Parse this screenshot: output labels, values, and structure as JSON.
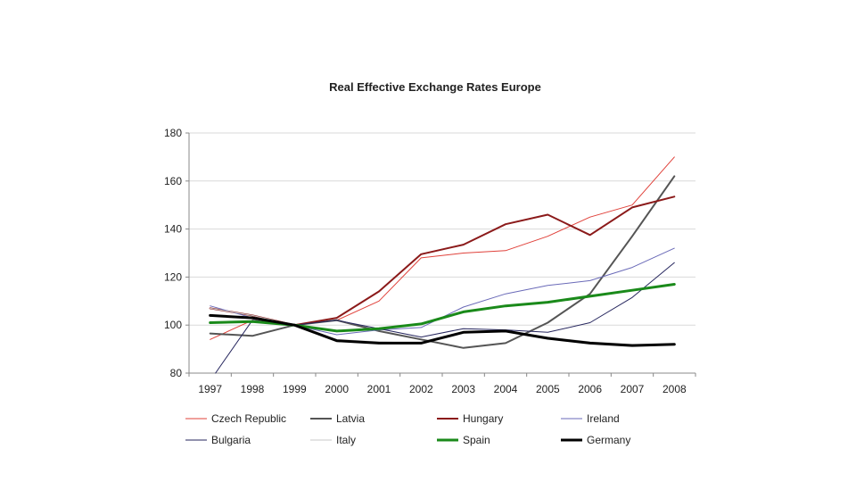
{
  "chart_data": {
    "type": "line",
    "title": "Real Effective Exchange Rates Europe",
    "xlabel": "",
    "ylabel": "",
    "ylim": [
      80,
      180
    ],
    "yticks": [
      80,
      100,
      120,
      140,
      160,
      180
    ],
    "grid": true,
    "legend_position": "bottom",
    "categories": [
      "1997",
      "1998",
      "1999",
      "2000",
      "2001",
      "2002",
      "2003",
      "2004",
      "2005",
      "2006",
      "2007",
      "2008"
    ],
    "series": [
      {
        "name": "Czech Republic",
        "color": "#e0413a",
        "weight": "thin",
        "values": [
          94,
          102,
          100,
          102,
          110,
          128,
          130,
          131,
          137,
          145,
          150,
          170
        ]
      },
      {
        "name": "Latvia",
        "color": "#555555",
        "weight": "medium",
        "values": [
          96.5,
          95.5,
          100,
          102,
          97.5,
          94,
          90.5,
          92.5,
          101,
          113,
          137,
          162
        ]
      },
      {
        "name": "Hungary",
        "color": "#8b1a1a",
        "weight": "medium",
        "values": [
          107,
          104,
          100,
          103,
          114,
          129.5,
          133.5,
          142,
          146,
          137.5,
          149,
          153.5
        ]
      },
      {
        "name": "Ireland",
        "color": "#6a6ab8",
        "weight": "thin",
        "values": [
          108,
          103,
          100,
          96,
          98,
          99,
          107.5,
          113,
          116.5,
          118.5,
          124,
          132
        ]
      },
      {
        "name": "Bulgaria",
        "color": "#26265e",
        "weight": "thin",
        "values": [
          null,
          102,
          100,
          102,
          98.5,
          95,
          98.5,
          98,
          97,
          101,
          111.5,
          126
        ]
      },
      {
        "name": "Italy",
        "color": "#c8c8c8",
        "weight": "thin",
        "values": [
          107,
          104,
          100,
          94,
          93,
          92.5,
          97,
          97.5,
          95,
          93,
          92,
          92
        ]
      },
      {
        "name": "Spain",
        "color": "#1a8a1a",
        "weight": "thick",
        "values": [
          101,
          101.5,
          100,
          97.5,
          98.5,
          100.5,
          105.5,
          108,
          109.5,
          112,
          114.5,
          117
        ]
      },
      {
        "name": "Germany",
        "color": "#000000",
        "weight": "thick",
        "values": [
          104,
          103,
          100,
          93.5,
          92.5,
          92.5,
          97,
          97.5,
          94.5,
          92.5,
          91.5,
          92
        ]
      }
    ]
  }
}
